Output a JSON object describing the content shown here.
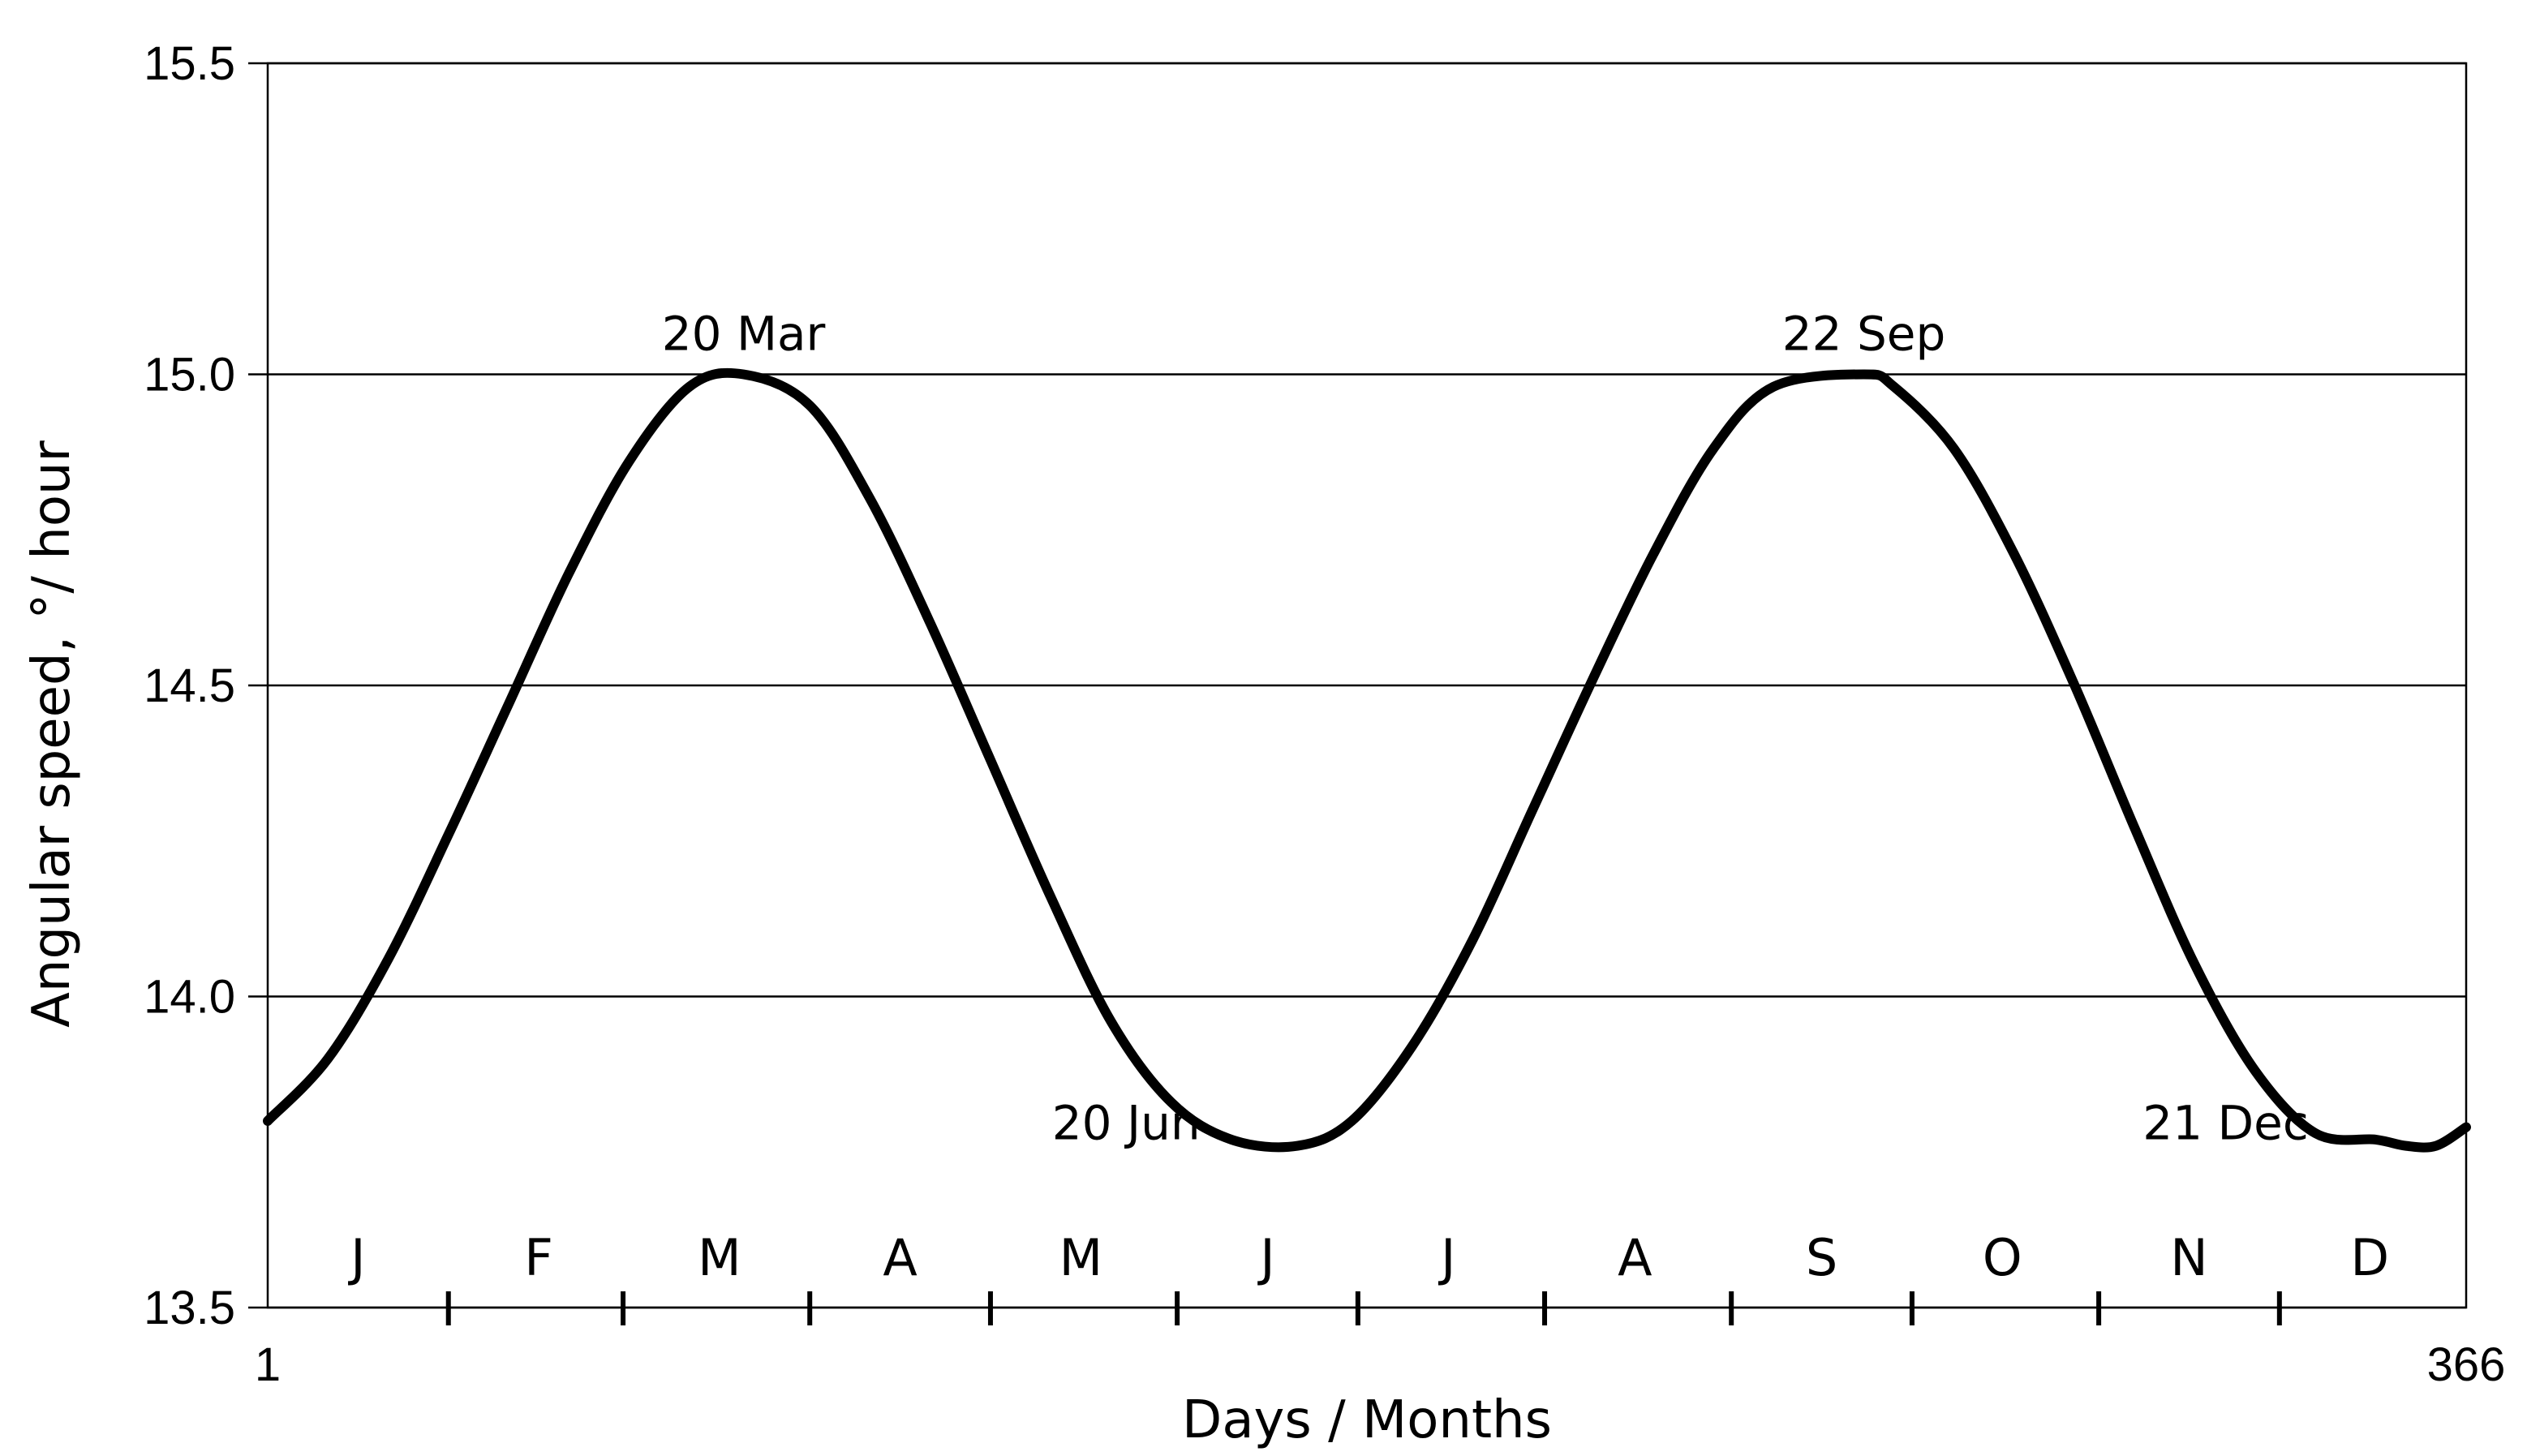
{
  "chart_data": {
    "type": "line",
    "title": "",
    "xlabel": "Days / Months",
    "ylabel": "Angular speed,  °/ hour",
    "xlim": [
      1,
      366
    ],
    "ylim": [
      13.5,
      15.5
    ],
    "y_ticks": [
      13.5,
      14.0,
      14.5,
      15.0,
      15.5
    ],
    "y_tick_labels": [
      "13.5",
      "14.0",
      "14.5",
      "15.0",
      "15.5"
    ],
    "x_tick_labels": [
      {
        "value": 1,
        "label": "1"
      },
      {
        "value": 366,
        "label": "366"
      }
    ],
    "grid": "horizontal",
    "legend": "none",
    "line_color": "#000000",
    "month_boundaries": [
      31,
      60,
      91,
      121,
      152,
      182,
      213,
      244,
      274,
      305,
      335
    ],
    "months": [
      {
        "label": "J",
        "mid": 16
      },
      {
        "label": "F",
        "mid": 46
      },
      {
        "label": "M",
        "mid": 76
      },
      {
        "label": "A",
        "mid": 106
      },
      {
        "label": "M",
        "mid": 136
      },
      {
        "label": "J",
        "mid": 167
      },
      {
        "label": "J",
        "mid": 197
      },
      {
        "label": "A",
        "mid": 228
      },
      {
        "label": "S",
        "mid": 259
      },
      {
        "label": "O",
        "mid": 289
      },
      {
        "label": "N",
        "mid": 320
      },
      {
        "label": "D",
        "mid": 350
      }
    ],
    "annotations": [
      {
        "text": "20 Mar",
        "x": 80,
        "y": 15.0,
        "position": "above"
      },
      {
        "text": "20 Jun",
        "x": 172,
        "y": 13.76,
        "position": "left"
      },
      {
        "text": "22 Sep",
        "x": 266,
        "y": 15.0,
        "position": "above"
      },
      {
        "text": "21 Dec",
        "x": 356,
        "y": 13.76,
        "position": "left"
      }
    ],
    "series": [
      {
        "x": [
          1,
          11,
          21,
          31,
          41,
          51,
          61,
          71,
          80,
          91,
          101,
          111,
          121,
          131,
          141,
          151,
          161,
          172,
          181,
          191,
          201,
          211,
          221,
          231,
          241,
          251,
          266,
          271,
          281,
          291,
          301,
          311,
          321,
          331,
          341,
          351,
          356,
          361,
          366
        ],
        "y": [
          13.8,
          13.9,
          14.06,
          14.26,
          14.47,
          14.68,
          14.86,
          14.98,
          15.0,
          14.95,
          14.8,
          14.6,
          14.38,
          14.16,
          13.96,
          13.83,
          13.77,
          13.76,
          13.8,
          13.92,
          14.09,
          14.3,
          14.51,
          14.71,
          14.88,
          14.98,
          15.0,
          14.98,
          14.88,
          14.71,
          14.5,
          14.27,
          14.05,
          13.88,
          13.78,
          13.77,
          13.76,
          13.76,
          13.79
        ]
      }
    ]
  }
}
